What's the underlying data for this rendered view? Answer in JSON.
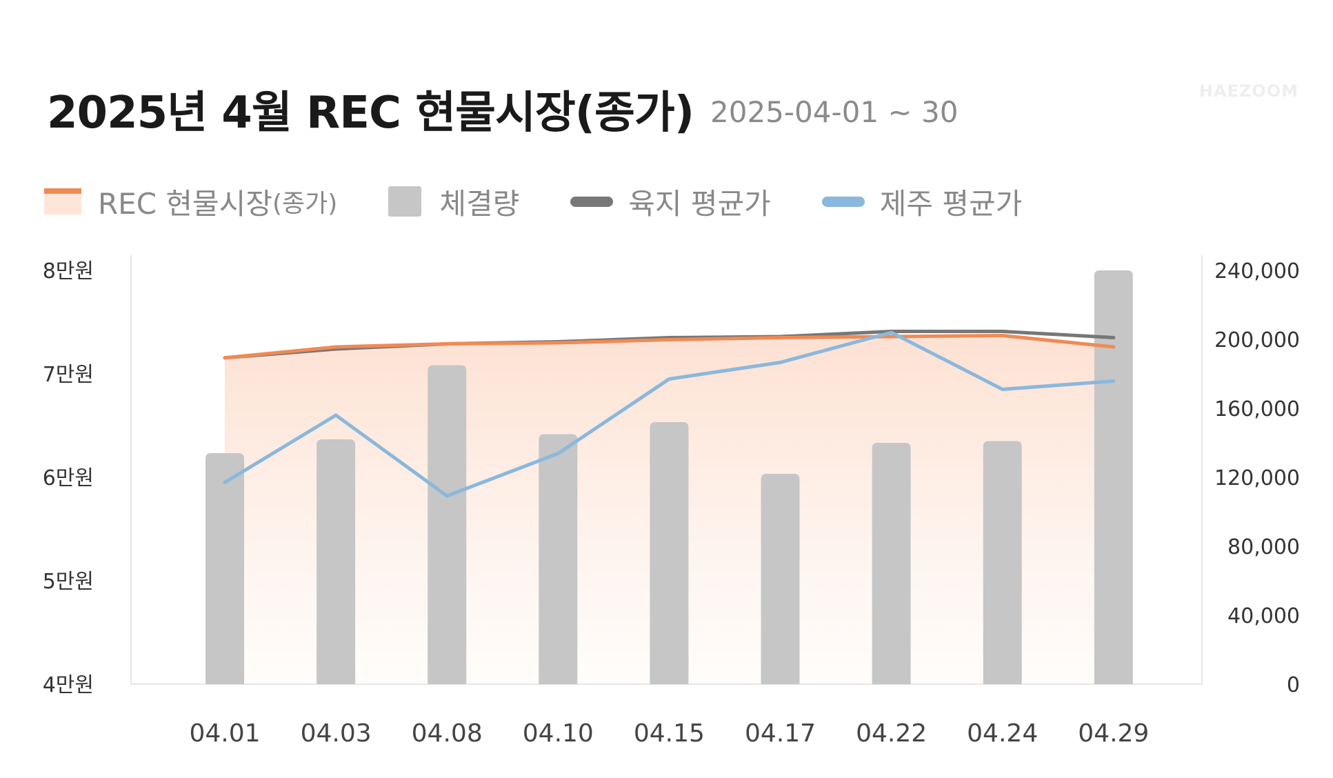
{
  "header": {
    "title": "2025년 4월 REC 현물시장(종가)",
    "subtitle": "2025-04-01 ~ 30",
    "brand": "HAEZOOM"
  },
  "legend": {
    "rec": "REC 현물시장",
    "rec_suffix": "(종가)",
    "volume": "체결량",
    "land": "육지 평균가",
    "jeju": "제주 평균가"
  },
  "colors": {
    "rec": "#f08a55",
    "rec_fill": "#fde6d8",
    "volume": "#c6c6c6",
    "land": "#777777",
    "jeju": "#8ab8dc"
  },
  "chart_data": {
    "type": "bar",
    "categories": [
      "04.01",
      "04.03",
      "04.08",
      "04.10",
      "04.15",
      "04.17",
      "04.22",
      "04.24",
      "04.29"
    ],
    "y_left": {
      "ticks": [
        "8만원",
        "7만원",
        "6만원",
        "5만원",
        "4만원"
      ],
      "tick_values": [
        80000,
        70000,
        60000,
        50000,
        40000
      ],
      "range": [
        40000,
        80000
      ]
    },
    "y_right": {
      "ticks": [
        "240,000",
        "200,000",
        "160,000",
        "120,000",
        "80,000",
        "40,000",
        "0"
      ],
      "tick_values": [
        240000,
        200000,
        160000,
        120000,
        80000,
        40000,
        0
      ],
      "range": [
        0,
        240000
      ]
    },
    "series": [
      {
        "name": "체결량",
        "type": "bar",
        "axis": "right",
        "values": [
          134000,
          142000,
          185000,
          145000,
          152000,
          122000,
          140000,
          141000,
          240000
        ]
      },
      {
        "name": "REC 현물시장(종가)",
        "type": "area",
        "axis": "left",
        "values": [
          71550,
          72600,
          72900,
          73000,
          73300,
          73500,
          73600,
          73700,
          72600
        ]
      },
      {
        "name": "육지 평균가",
        "type": "line",
        "axis": "left",
        "values": [
          71550,
          72400,
          72900,
          73100,
          73500,
          73600,
          74100,
          74100,
          73500
        ]
      },
      {
        "name": "제주 평균가",
        "type": "line",
        "axis": "left",
        "values": [
          59500,
          66000,
          58200,
          62300,
          69500,
          71100,
          74000,
          68500,
          69300
        ]
      }
    ]
  }
}
